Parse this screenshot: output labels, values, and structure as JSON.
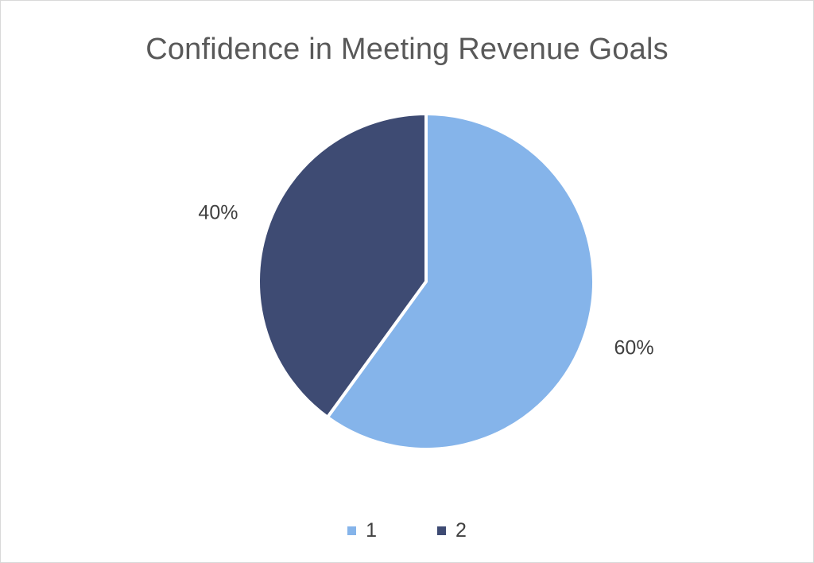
{
  "chart_data": {
    "type": "pie",
    "title": "Confidence in Meeting Revenue Goals",
    "categories": [
      "1",
      "2"
    ],
    "values": [
      60,
      40
    ],
    "data_labels": [
      "60%",
      "40%"
    ],
    "colors": [
      "#85b4ea",
      "#3e4b73"
    ],
    "start_angle_deg": 0,
    "direction": "clockwise",
    "legend_position": "bottom"
  }
}
